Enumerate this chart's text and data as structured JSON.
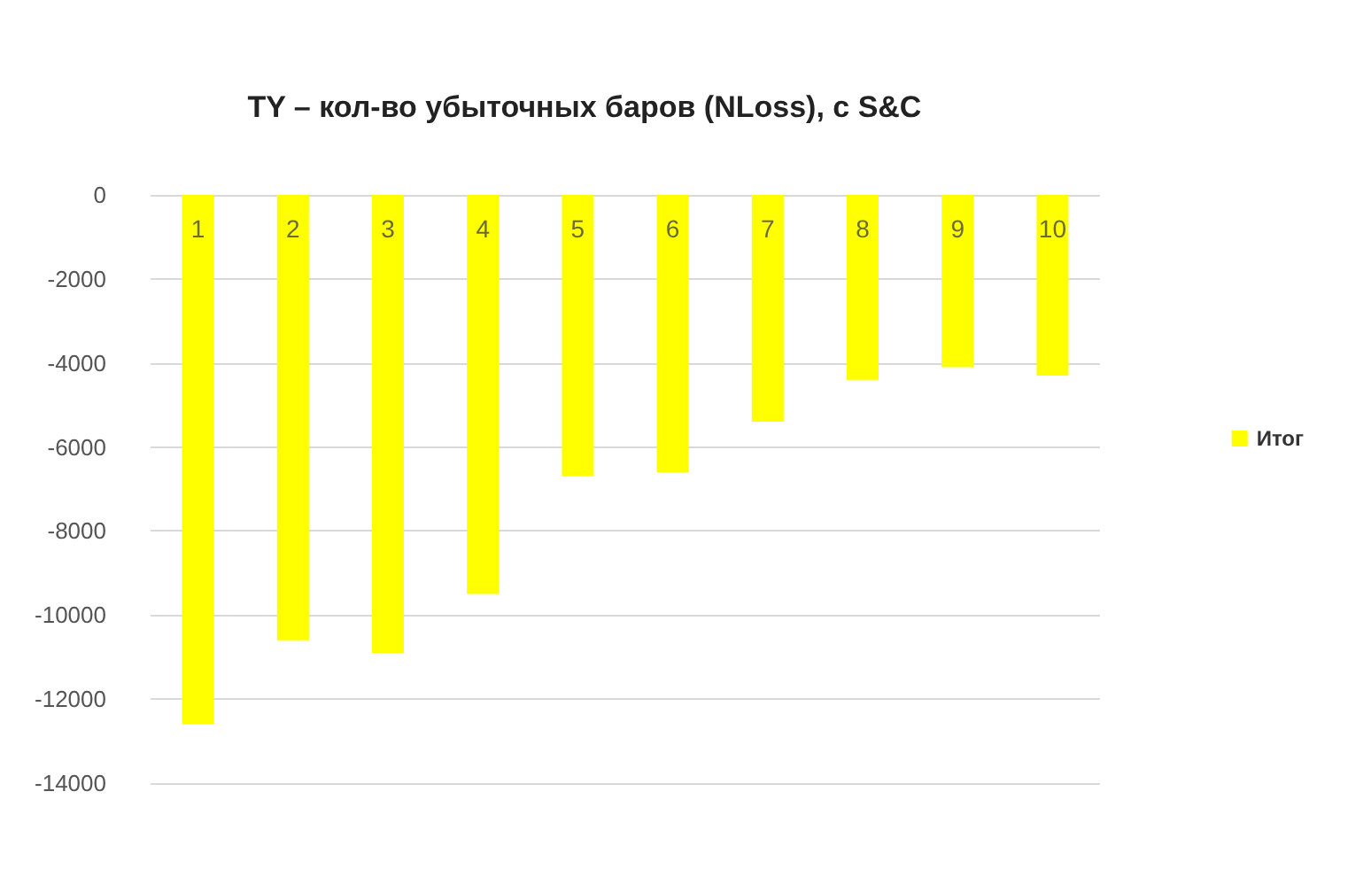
{
  "chart_data": {
    "type": "bar",
    "title": "TY – кол-во убыточных баров (NLoss), с S&C",
    "categories": [
      "1",
      "2",
      "3",
      "4",
      "5",
      "6",
      "7",
      "8",
      "9",
      "10"
    ],
    "series": [
      {
        "name": "Итог",
        "color": "#ffff00",
        "values": [
          -12600,
          -10600,
          -10900,
          -9500,
          -6700,
          -6600,
          -5400,
          -4400,
          -4100,
          -4300
        ]
      }
    ],
    "ylim": [
      -14000,
      0
    ],
    "yticks": [
      -14000,
      -12000,
      -10000,
      -8000,
      -6000,
      -4000,
      -2000,
      0
    ],
    "grid": "y",
    "legend": "right"
  }
}
